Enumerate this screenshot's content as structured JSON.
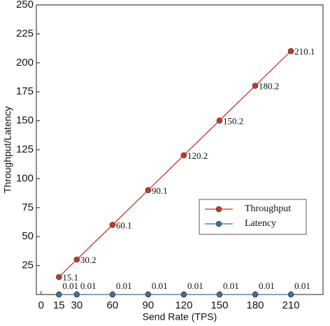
{
  "chart_data": {
    "type": "line",
    "x_label": "Send Rate (TPS)",
    "y_label": "Throughput/Latency",
    "x": [
      15,
      30,
      60,
      90,
      120,
      150,
      180,
      210
    ],
    "series": [
      {
        "name": "Throughput",
        "color": "#c0392b",
        "values": [
          15.1,
          30.2,
          60.1,
          90.1,
          120.2,
          150.2,
          180.2,
          210.1
        ]
      },
      {
        "name": "Latency",
        "color": "#3e6f96",
        "values": [
          0.01,
          0.01,
          0.01,
          0.01,
          0.01,
          0.01,
          0.01,
          0.01
        ]
      }
    ],
    "xlim": [
      -4,
      237
    ],
    "ylim": [
      0,
      250
    ],
    "xticks": [
      0,
      15,
      30,
      60,
      90,
      120,
      150,
      180,
      210
    ],
    "yticks": [
      25,
      50,
      75,
      100,
      125,
      150,
      175,
      200,
      225,
      250
    ],
    "legend": "lower right"
  }
}
